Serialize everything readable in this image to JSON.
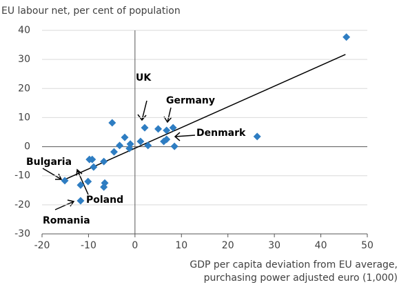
{
  "chart_data": {
    "type": "scatter",
    "title": "EU labour net, per cent of population",
    "x_label": [
      "GDP per capita deviation from EU average,",
      "purchasing power adjusted euro (1,000)"
    ],
    "color": "#2e7dc2",
    "x": [
      45.5,
      26.3,
      -4.9,
      2.1,
      5.0,
      6.8,
      8.2,
      8.5,
      6.8,
      6.2,
      1.2,
      2.8,
      -1.0,
      -1.2,
      -2.2,
      -3.3,
      -4.5,
      -6.7,
      -6.5,
      -6.7,
      -9.2,
      -9.8,
      -8.9,
      -10.1,
      -11.7,
      -11.7,
      -15.1
    ],
    "values": [
      37.7,
      3.5,
      8.2,
      6.5,
      6.1,
      5.6,
      6.5,
      0.1,
      2.5,
      1.8,
      1.8,
      0.4,
      0.9,
      -0.6,
      3.2,
      0.4,
      -1.8,
      -5.1,
      -12.5,
      -13.9,
      -4.4,
      -4.4,
      -7.0,
      -12.0,
      -13.2,
      -18.6,
      -11.7
    ],
    "trend_line": {
      "x": [
        -15.1,
        45.3
      ],
      "values": [
        -11.3,
        31.7
      ]
    },
    "annotations": [
      "UK",
      "Germany",
      "Denmark",
      "Bulgaria",
      "Poland",
      "Romania"
    ],
    "xlim": [
      -20,
      50
    ],
    "xticks": [
      -20,
      -10,
      0,
      10,
      20,
      30,
      40,
      50
    ],
    "ylim": [
      -30,
      40
    ],
    "yticks": [
      -30,
      -20,
      -10,
      0,
      10,
      20,
      30,
      40
    ],
    "grid": true
  }
}
